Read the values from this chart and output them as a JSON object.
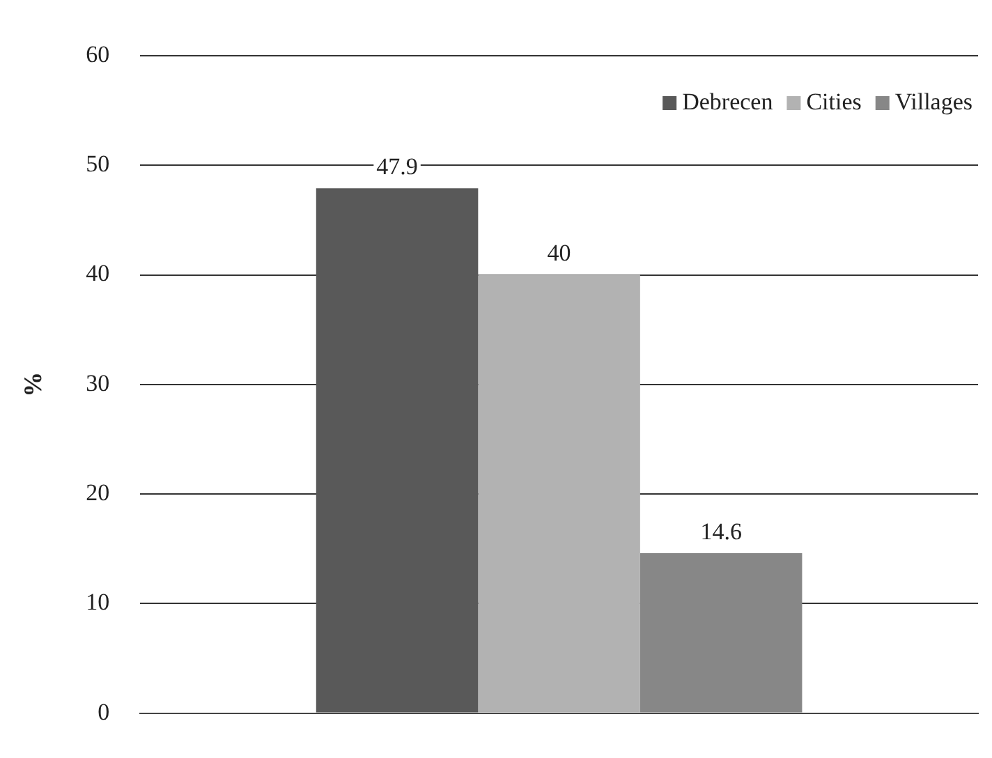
{
  "chart_data": {
    "type": "bar",
    "ylabel": "%",
    "categories": [
      null
    ],
    "series": [
      {
        "name": "Debrecen",
        "color": "#595959",
        "values": [
          47.9
        ]
      },
      {
        "name": "Cities",
        "color": "#b2b2b2",
        "values": [
          40
        ]
      },
      {
        "name": "Villages",
        "color": "#878787",
        "values": [
          14.6
        ]
      }
    ],
    "ylim": [
      0,
      60
    ],
    "yticks": [
      0,
      10,
      20,
      30,
      40,
      50,
      60
    ],
    "grid": "y",
    "legend": "top right",
    "data_labels": true
  }
}
